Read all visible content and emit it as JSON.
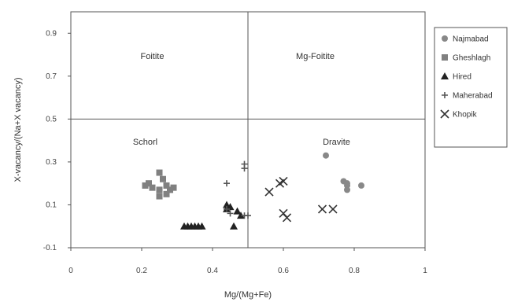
{
  "chart_data": {
    "type": "scatter",
    "title": "",
    "xlabel": "Mg/(Mg+Fe)",
    "ylabel": "X-vacancy/(Na+X vacancy)",
    "xlim": [
      0,
      1
    ],
    "ylim": [
      -0.1,
      1.0
    ],
    "x_ticks": [
      0,
      0.2,
      0.4,
      0.6,
      0.8,
      1
    ],
    "x_tick_labels": [
      "0",
      "0.2",
      "0.4",
      "0.6",
      "0.8",
      "1"
    ],
    "y_ticks": [
      -0.1,
      0.1,
      0.3,
      0.5,
      0.7,
      0.9
    ],
    "y_tick_labels": [
      "-0.1",
      "0.1",
      "0.3",
      "0.5",
      "0.7",
      "0.9"
    ],
    "grid": false,
    "legend_position": "right",
    "divider_x": 0.5,
    "divider_y": 0.5,
    "regions": [
      {
        "label": "Foitite",
        "x": 0.23,
        "y": 0.78
      },
      {
        "label": "Mg-Foitite",
        "x": 0.69,
        "y": 0.78
      },
      {
        "label": "Schorl",
        "x": 0.21,
        "y": 0.38
      },
      {
        "label": "Dravite",
        "x": 0.75,
        "y": 0.38
      }
    ],
    "series": [
      {
        "name": "Najmabad",
        "marker": "circle",
        "color": "#888888",
        "points": [
          [
            0.72,
            0.33
          ],
          [
            0.77,
            0.21
          ],
          [
            0.78,
            0.2
          ],
          [
            0.78,
            0.17
          ],
          [
            0.82,
            0.19
          ],
          [
            0.78,
            0.19
          ]
        ]
      },
      {
        "name": "Gheshlagh",
        "marker": "square",
        "color": "#808080",
        "points": [
          [
            0.21,
            0.19
          ],
          [
            0.22,
            0.2
          ],
          [
            0.23,
            0.18
          ],
          [
            0.25,
            0.25
          ],
          [
            0.25,
            0.17
          ],
          [
            0.25,
            0.14
          ],
          [
            0.26,
            0.22
          ],
          [
            0.27,
            0.19
          ],
          [
            0.27,
            0.15
          ],
          [
            0.28,
            0.17
          ],
          [
            0.29,
            0.18
          ]
        ]
      },
      {
        "name": "Hired",
        "marker": "triangle",
        "color": "#222222",
        "points": [
          [
            0.32,
            0.0
          ],
          [
            0.33,
            0.0
          ],
          [
            0.34,
            0.0
          ],
          [
            0.35,
            0.0
          ],
          [
            0.36,
            0.0
          ],
          [
            0.37,
            0.0
          ],
          [
            0.44,
            0.1
          ],
          [
            0.44,
            0.08
          ],
          [
            0.45,
            0.09
          ],
          [
            0.46,
            0.0
          ],
          [
            0.47,
            0.07
          ],
          [
            0.48,
            0.05
          ]
        ]
      },
      {
        "name": "Maherabad",
        "marker": "plus",
        "color": "#555555",
        "points": [
          [
            0.49,
            0.29
          ],
          [
            0.49,
            0.27
          ],
          [
            0.44,
            0.2
          ],
          [
            0.44,
            0.08
          ],
          [
            0.45,
            0.06
          ],
          [
            0.49,
            0.05
          ],
          [
            0.5,
            0.05
          ]
        ]
      },
      {
        "name": "Khopik",
        "marker": "x",
        "color": "#333333",
        "points": [
          [
            0.56,
            0.16
          ],
          [
            0.59,
            0.2
          ],
          [
            0.6,
            0.21
          ],
          [
            0.6,
            0.06
          ],
          [
            0.61,
            0.04
          ],
          [
            0.71,
            0.08
          ],
          [
            0.74,
            0.08
          ]
        ]
      }
    ]
  }
}
